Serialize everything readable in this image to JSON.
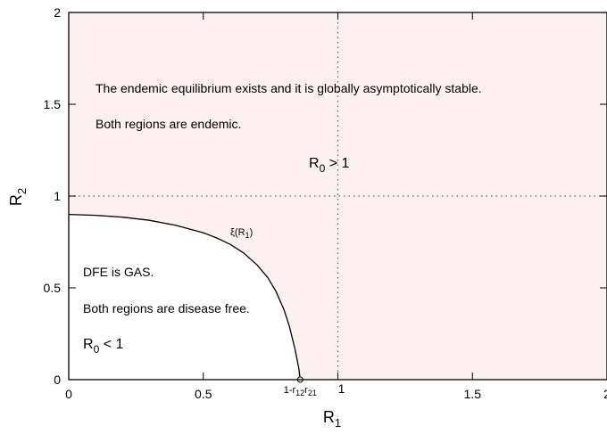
{
  "chart_data": {
    "type": "area",
    "xlim": [
      0,
      2
    ],
    "ylim": [
      0,
      2
    ],
    "x_ticks": [
      {
        "value": 0,
        "label": "0"
      },
      {
        "value": 0.5,
        "label": "0.5"
      },
      {
        "value": 1,
        "label": "1"
      },
      {
        "value": 1.5,
        "label": "1.5"
      },
      {
        "value": 2,
        "label": "2"
      }
    ],
    "y_ticks": [
      {
        "value": 0,
        "label": "0"
      },
      {
        "value": 0.5,
        "label": "0.5"
      },
      {
        "value": 1,
        "label": "1"
      },
      {
        "value": 1.5,
        "label": "1.5"
      },
      {
        "value": 2,
        "label": "2"
      }
    ],
    "xlabel": {
      "main": "R",
      "sub": "1"
    },
    "ylabel": {
      "main": "R",
      "sub": "2"
    },
    "grid": false,
    "reference_lines": [
      {
        "orientation": "vertical",
        "value": 1,
        "style": "dotted"
      },
      {
        "orientation": "horizontal",
        "value": 1,
        "style": "dotted"
      }
    ],
    "boundary_curve": {
      "label": {
        "main": "ξ(R",
        "sub": "1",
        "tail": ")"
      },
      "points": [
        [
          0,
          0.9
        ],
        [
          0.1,
          0.895
        ],
        [
          0.2,
          0.885
        ],
        [
          0.3,
          0.868
        ],
        [
          0.4,
          0.84
        ],
        [
          0.5,
          0.8
        ],
        [
          0.55,
          0.772
        ],
        [
          0.6,
          0.737
        ],
        [
          0.65,
          0.69
        ],
        [
          0.7,
          0.625
        ],
        [
          0.74,
          0.555
        ],
        [
          0.77,
          0.48
        ],
        [
          0.8,
          0.38
        ],
        [
          0.82,
          0.29
        ],
        [
          0.84,
          0.17
        ],
        [
          0.855,
          0.06
        ],
        [
          0.86,
          0
        ]
      ],
      "endpoint_x": 0.86,
      "endpoint_label": {
        "main": "1-r",
        "sub1": "12",
        "mid": "r",
        "sub2": "21"
      }
    },
    "regions": {
      "endemic": {
        "color": "#fdf0f0",
        "text_line_1": "The endemic equilibrium exists and it is globally asymptotically stable.",
        "text_line_2": "Both regions are endemic.",
        "condition": {
          "main": "R",
          "sub": "0",
          "tail": " > 1"
        }
      },
      "disease_free": {
        "color": "#ffffff",
        "text_line_1": "DFE is GAS.",
        "text_line_2": "Both regions are disease free.",
        "condition": {
          "main": "R",
          "sub": "0",
          "tail": " < 1"
        }
      }
    }
  }
}
